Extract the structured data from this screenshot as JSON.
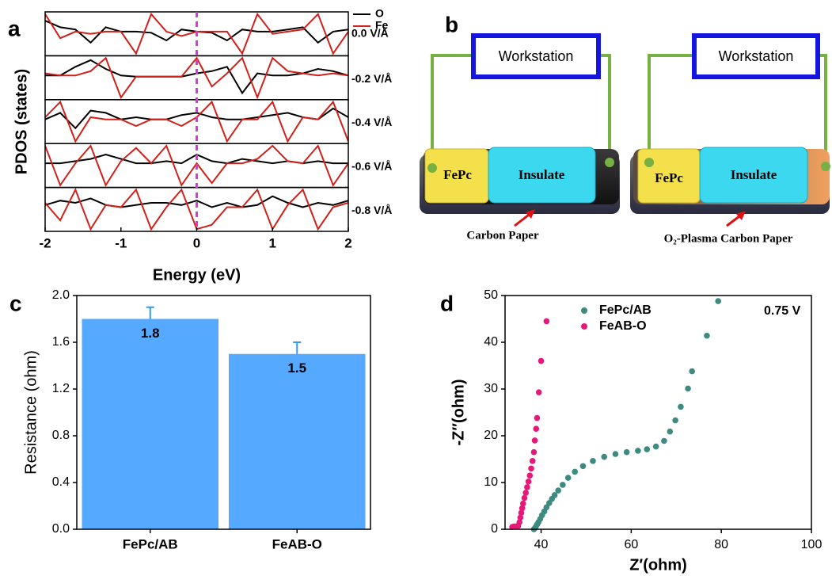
{
  "chart_data": [
    {
      "type": "line",
      "panel_label": "a",
      "xlabel": "Energy (eV)",
      "ylabel": "PDOS (states)",
      "xlim": [
        -2,
        2
      ],
      "xticks": [
        -2,
        -1,
        0,
        1,
        2
      ],
      "vline": 0,
      "vline_color": "#e033e6",
      "x": [
        -2,
        -1.8,
        -1.6,
        -1.4,
        -1.2,
        -1,
        -0.8,
        -0.6,
        -0.4,
        -0.2,
        0,
        0.2,
        0.4,
        0.6,
        0.8,
        1,
        1.2,
        1.4,
        1.6,
        1.8,
        2
      ],
      "ylim": [
        -1,
        1
      ],
      "subplots": [
        {
          "label": "0.0 V/Å",
          "series": [
            {
              "name": "O",
              "color": "#000000",
              "values": [
                0.6,
                0.3,
                0.2,
                -0.4,
                0.3,
                0.1,
                0.1,
                0.05,
                -0.3,
                0.2,
                0.1,
                0.05,
                -0.3,
                0.2,
                0.1,
                0.1,
                0.2,
                0.3,
                -0.4,
                0.1,
                0.2
              ]
            },
            {
              "name": "Fe",
              "color": "#d0201a",
              "values": [
                0.9,
                -0.2,
                0.1,
                0,
                0.1,
                0.1,
                -0.9,
                0.9,
                0.1,
                -0.1,
                0.1,
                0.1,
                0.1,
                -0.9,
                0.9,
                0,
                0.1,
                0.2,
                0.9,
                -0.9,
                0.1
              ]
            }
          ]
        },
        {
          "label": "-0.2 V/Å",
          "series": [
            {
              "name": "O",
              "color": "#000000",
              "values": [
                0.1,
                0.1,
                0.5,
                0.8,
                0.4,
                0.1,
                0.05,
                0.05,
                0.05,
                0.05,
                0.2,
                0.3,
                0.5,
                -0.7,
                0.2,
                0.1,
                0.1,
                0.2,
                0.4,
                0.3,
                0.1
              ]
            },
            {
              "name": "Fe",
              "color": "#d0201a",
              "values": [
                0.2,
                0.1,
                0.1,
                0.3,
                0.9,
                -0.9,
                0.05,
                0.05,
                0.05,
                0.05,
                0.9,
                -0.4,
                0.2,
                0.9,
                -0.9,
                0.9,
                0.3,
                0.2,
                0.1,
                0.2,
                0.1
              ]
            }
          ]
        },
        {
          "label": "-0.4 V/Å",
          "series": [
            {
              "name": "O",
              "color": "#000000",
              "values": [
                0.1,
                0.4,
                -0.3,
                0.5,
                0.4,
                0.1,
                0.2,
                0.1,
                0.1,
                0.3,
                0.4,
                0.2,
                0.1,
                0.1,
                0.2,
                0.3,
                0.4,
                0.2,
                0.1,
                0.6,
                0.2
              ]
            },
            {
              "name": "Fe",
              "color": "#d0201a",
              "values": [
                0.2,
                0.9,
                -0.9,
                0.2,
                0.1,
                0.1,
                -0.2,
                0.1,
                0.1,
                -0.2,
                0.2,
                0.9,
                -0.9,
                0.1,
                0.1,
                0.9,
                -0.9,
                0.2,
                0.1,
                0.9,
                -0.9
              ]
            }
          ]
        },
        {
          "label": "-0.6 V/Å",
          "series": [
            {
              "name": "O",
              "color": "#000000",
              "values": [
                0.1,
                0.1,
                0.2,
                0.3,
                0.5,
                0.3,
                0.1,
                0.1,
                0.2,
                0.1,
                0.5,
                0.2,
                0.1,
                0.3,
                0.2,
                0.1,
                0.2,
                0.1,
                0.2,
                0.1,
                0.1
              ]
            },
            {
              "name": "Fe",
              "color": "#d0201a",
              "values": [
                0.9,
                -0.9,
                0.1,
                0.9,
                -0.9,
                0.2,
                0.8,
                0.1,
                0.9,
                -0.9,
                0.1,
                -0.8,
                0.1,
                0.1,
                0.3,
                0.9,
                0.2,
                0.1,
                0.9,
                -0.9,
                0.1
              ]
            }
          ]
        },
        {
          "label": "-0.8 V/Å",
          "series": [
            {
              "name": "O",
              "color": "#000000",
              "values": [
                0.2,
                0.4,
                0.3,
                0.5,
                0.2,
                0.1,
                0.2,
                0.3,
                0.3,
                0.2,
                0.4,
                0.1,
                0.3,
                0.1,
                0.2,
                0.6,
                0.3,
                0.1,
                0.3,
                0.2,
                0.4
              ]
            },
            {
              "name": "Fe",
              "color": "#d0201a",
              "values": [
                0.3,
                -0.5,
                0.9,
                -0.9,
                0.2,
                0.1,
                0.9,
                -0.9,
                0.1,
                0.9,
                -0.9,
                -0.7,
                0.1,
                0.1,
                0.9,
                -0.9,
                0.2,
                0.9,
                -0.9,
                0.1,
                0.3
              ]
            }
          ]
        }
      ]
    },
    {
      "type": "bar",
      "panel_label": "c",
      "ylabel": "Resistance (ohm)",
      "categories": [
        "FePc/AB",
        "FeAB-O"
      ],
      "values": [
        1.8,
        1.5
      ],
      "errors": [
        0.1,
        0.1
      ],
      "color": "#55aaff",
      "error_color": "#3399ee",
      "ylim": [
        0,
        2
      ],
      "yticks": [
        {
          "value": 0,
          "label": "0.0"
        },
        0.4,
        0.8,
        1.2,
        1.6,
        {
          "value": 2,
          "label": "2.0"
        }
      ]
    },
    {
      "type": "scatter",
      "panel_label": "d",
      "xlabel": "Z′(ohm)",
      "ylabel": "-Z″(ohm)",
      "annotation": "0.75 V",
      "xlim": [
        32,
        100
      ],
      "xticks": [
        40,
        60,
        80,
        100
      ],
      "ylim": [
        0,
        50
      ],
      "yticks": [
        0,
        10,
        20,
        30,
        40,
        50
      ],
      "series": [
        {
          "name": "FePc/AB",
          "color": "#3d8b80",
          "x": [
            38.4,
            38.6,
            38.8,
            39.1,
            39.4,
            39.8,
            40.2,
            40.7,
            41.2,
            41.8,
            42.4,
            43.0,
            43.8,
            44.8,
            46.0,
            47.5,
            49.3,
            51.5,
            54.0,
            56.5,
            59.0,
            61.5,
            63.5,
            65.5,
            67.3,
            68.6,
            69.8,
            71.0,
            72.6,
            73.5,
            76.8,
            79.3
          ],
          "y": [
            0,
            0.2,
            0.5,
            1,
            1.5,
            2.2,
            3,
            3.8,
            4.7,
            5.6,
            6.5,
            7.3,
            8.3,
            9.5,
            11,
            12.3,
            13.5,
            14.6,
            15.5,
            16.1,
            16.5,
            16.8,
            17.1,
            17.7,
            18.9,
            20.9,
            23.3,
            26.2,
            30.1,
            33.8,
            41.4,
            48.8
          ]
        },
        {
          "name": "FeAB-O",
          "color": "#e6197a",
          "x": [
            33.6,
            34.0,
            34.5,
            34.9,
            35.2,
            35.4,
            35.6,
            35.8,
            36.0,
            36.3,
            36.6,
            36.9,
            37.2,
            37.5,
            37.8,
            38.1,
            38.4,
            38.6,
            38.9,
            39.1,
            39.5,
            40.0,
            41.2
          ],
          "y": [
            0.5,
            0.6,
            0.6,
            0.7,
            1.5,
            2.5,
            3.5,
            4.5,
            5.5,
            6.7,
            7.8,
            9,
            10.2,
            11.5,
            13,
            14.6,
            16.5,
            19,
            21.5,
            23.8,
            29.3,
            36,
            44.5
          ]
        }
      ]
    }
  ],
  "diagram": {
    "panel_label": "b",
    "devices": [
      {
        "workstation": "Workstation",
        "electrode": "FePc",
        "insulator": "Insulate",
        "substrate": "Carbon Paper"
      },
      {
        "workstation": "Workstation",
        "electrode": "FePc",
        "insulator": "Insulate",
        "substrate": "O₂-Plasma Carbon Paper"
      }
    ]
  }
}
